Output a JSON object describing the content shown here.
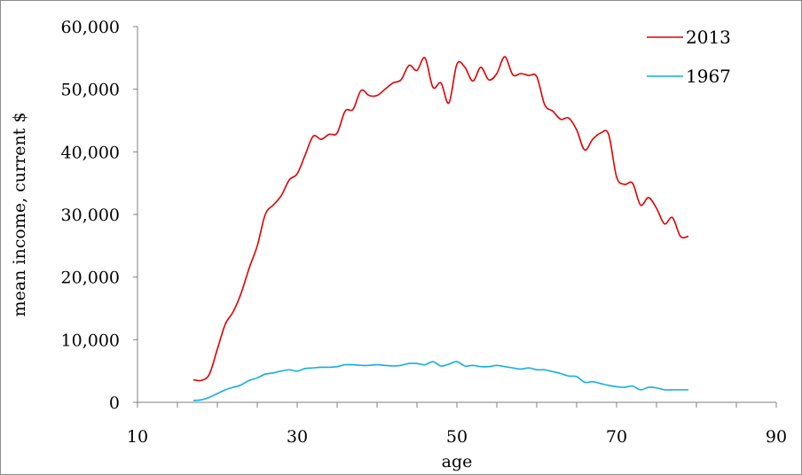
{
  "chart_data": {
    "type": "line",
    "xlabel": "age",
    "ylabel": "mean income, current $",
    "xlim": [
      10,
      90
    ],
    "ylim": [
      0,
      60000
    ],
    "x_ticks": [
      10,
      30,
      50,
      70,
      90
    ],
    "x_tick_labels": [
      "10",
      "30",
      "50",
      "70",
      "90"
    ],
    "y_ticks": [
      0,
      10000,
      20000,
      30000,
      40000,
      50000,
      60000
    ],
    "y_tick_labels": [
      "0",
      "10,000",
      "20,000",
      "30,000",
      "40,000",
      "50,000",
      "60,000"
    ],
    "grid": false,
    "legend_position": "top-right",
    "series": [
      {
        "name": "2013",
        "color": "#e00000",
        "x": [
          17,
          18,
          19,
          20,
          21,
          22,
          23,
          24,
          25,
          26,
          27,
          28,
          29,
          30,
          31,
          32,
          33,
          34,
          35,
          36,
          37,
          38,
          39,
          40,
          41,
          42,
          43,
          44,
          45,
          46,
          47,
          48,
          49,
          50,
          51,
          52,
          53,
          54,
          55,
          56,
          57,
          58,
          59,
          60,
          61,
          62,
          63,
          64,
          65,
          66,
          67,
          68,
          69,
          70,
          71,
          72,
          73,
          74,
          75,
          76,
          77,
          78,
          79
        ],
        "y": [
          3600,
          3500,
          4500,
          8500,
          12500,
          14500,
          17500,
          21500,
          25000,
          30000,
          31500,
          33000,
          35500,
          36500,
          39500,
          42500,
          42000,
          42800,
          43000,
          46500,
          46800,
          49800,
          49000,
          49000,
          50000,
          51000,
          51500,
          53800,
          53000,
          55000,
          50300,
          51000,
          47800,
          54000,
          53500,
          51300,
          53500,
          51500,
          52500,
          55200,
          52300,
          52500,
          52200,
          52000,
          47500,
          46500,
          45200,
          45400,
          43500,
          40300,
          42000,
          43000,
          42800,
          36000,
          34800,
          35000,
          31500,
          32700,
          31000,
          28500,
          29500,
          26500,
          26500
        ]
      },
      {
        "name": "1967",
        "color": "#12aee0",
        "x": [
          17,
          18,
          19,
          20,
          21,
          22,
          23,
          24,
          25,
          26,
          27,
          28,
          29,
          30,
          31,
          32,
          33,
          34,
          35,
          36,
          37,
          38,
          39,
          40,
          41,
          42,
          43,
          44,
          45,
          46,
          47,
          48,
          49,
          50,
          51,
          52,
          53,
          54,
          55,
          56,
          57,
          58,
          59,
          60,
          61,
          62,
          63,
          64,
          65,
          66,
          67,
          68,
          69,
          70,
          71,
          72,
          73,
          74,
          75,
          76,
          77,
          78,
          79
        ],
        "y": [
          300,
          400,
          800,
          1400,
          2000,
          2400,
          2800,
          3500,
          3900,
          4500,
          4700,
          5000,
          5200,
          5000,
          5400,
          5500,
          5600,
          5600,
          5700,
          6000,
          6000,
          5900,
          5900,
          6000,
          5900,
          5800,
          5900,
          6200,
          6200,
          6000,
          6500,
          5800,
          6100,
          6500,
          5800,
          5900,
          5700,
          5700,
          5900,
          5700,
          5500,
          5300,
          5500,
          5200,
          5200,
          4900,
          4600,
          4200,
          4100,
          3200,
          3300,
          3000,
          2700,
          2500,
          2400,
          2600,
          2000,
          2400,
          2300,
          2000,
          2000,
          2000,
          2000
        ]
      }
    ]
  }
}
